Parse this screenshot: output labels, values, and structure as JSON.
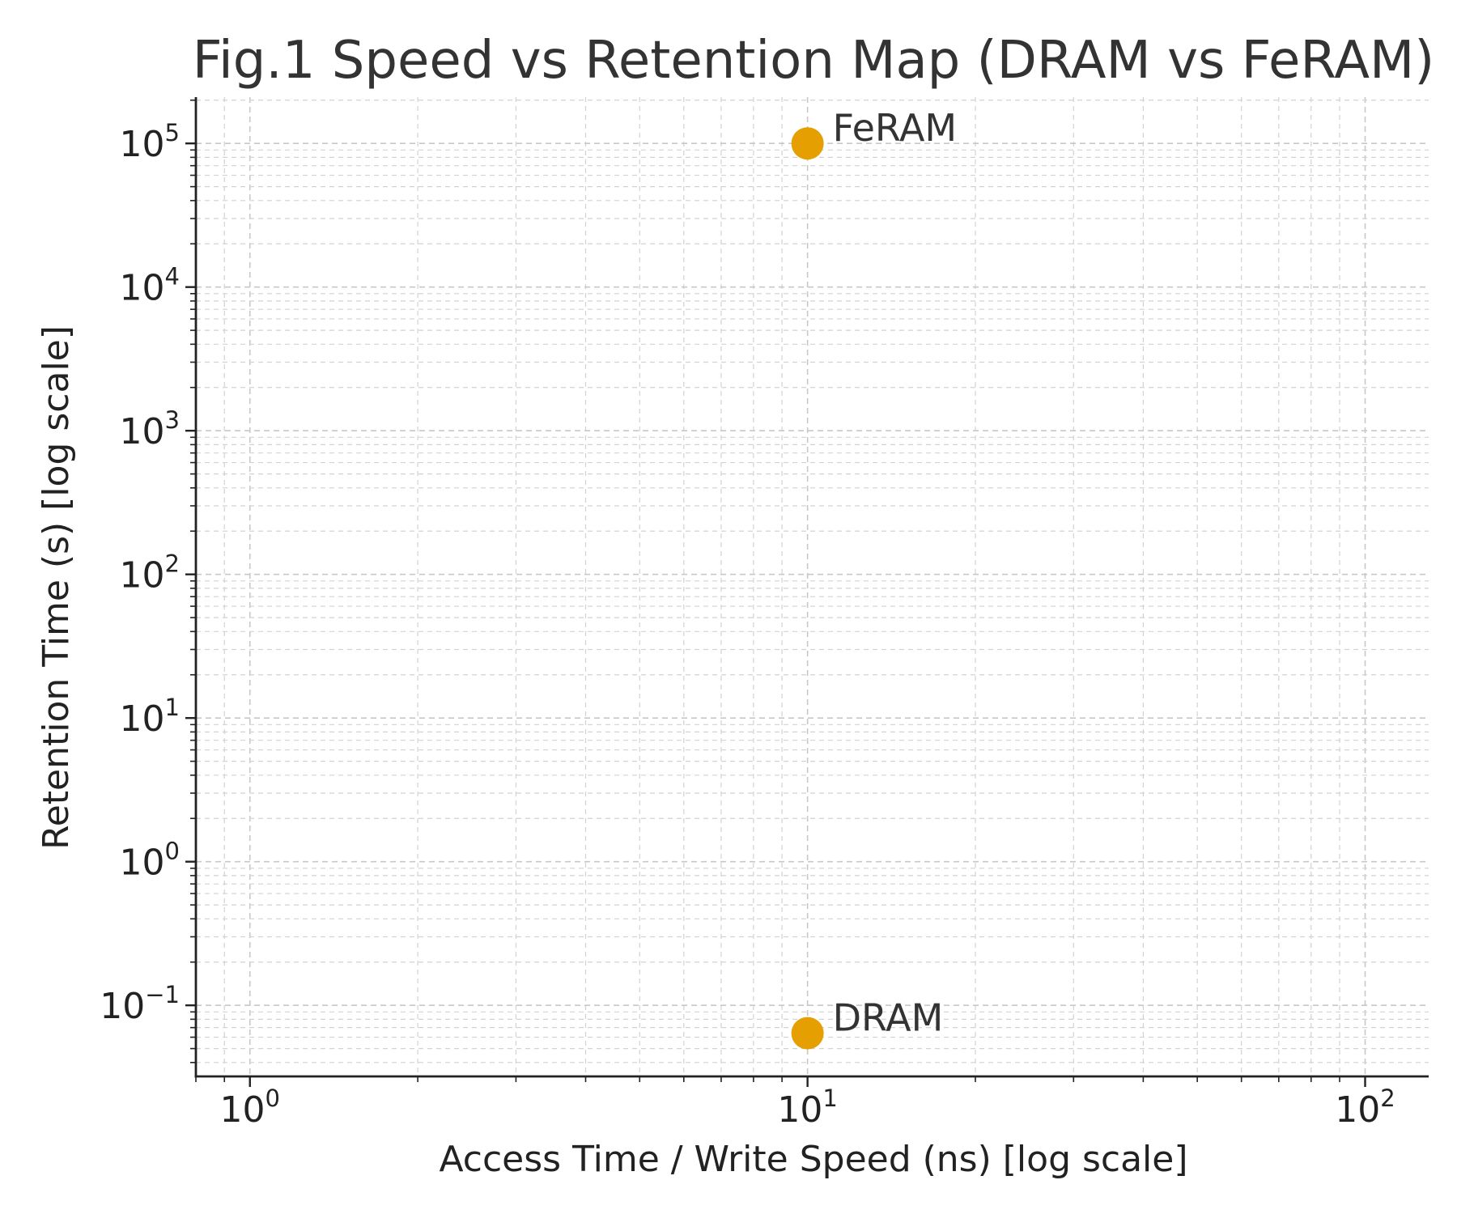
{
  "chart_data": {
    "type": "scatter",
    "title": "Fig.1 Speed vs Retention Map (DRAM vs FeRAM)",
    "xlabel": "Access Time / Write Speed (ns) [log scale]",
    "ylabel": "Retention Time (s) [log scale]",
    "xscale": "log",
    "yscale": "log",
    "xlim": [
      0.8,
      130
    ],
    "ylim": [
      0.032,
      210000
    ],
    "x_ticks": [
      {
        "value": 1,
        "base": "10",
        "exp": "0"
      },
      {
        "value": 10,
        "base": "10",
        "exp": "1"
      },
      {
        "value": 100,
        "base": "10",
        "exp": "2"
      }
    ],
    "y_ticks": [
      {
        "value": 0.1,
        "base": "10",
        "exp": "−1"
      },
      {
        "value": 1,
        "base": "10",
        "exp": "0"
      },
      {
        "value": 10,
        "base": "10",
        "exp": "1"
      },
      {
        "value": 100,
        "base": "10",
        "exp": "2"
      },
      {
        "value": 1000,
        "base": "10",
        "exp": "3"
      },
      {
        "value": 10000,
        "base": "10",
        "exp": "4"
      },
      {
        "value": 100000,
        "base": "10",
        "exp": "5"
      }
    ],
    "grid": true,
    "marker_color": "#E69F00",
    "points": [
      {
        "label": "DRAM",
        "x": 10,
        "y": 0.064
      },
      {
        "label": "FeRAM",
        "x": 10,
        "y": 100000
      }
    ]
  }
}
